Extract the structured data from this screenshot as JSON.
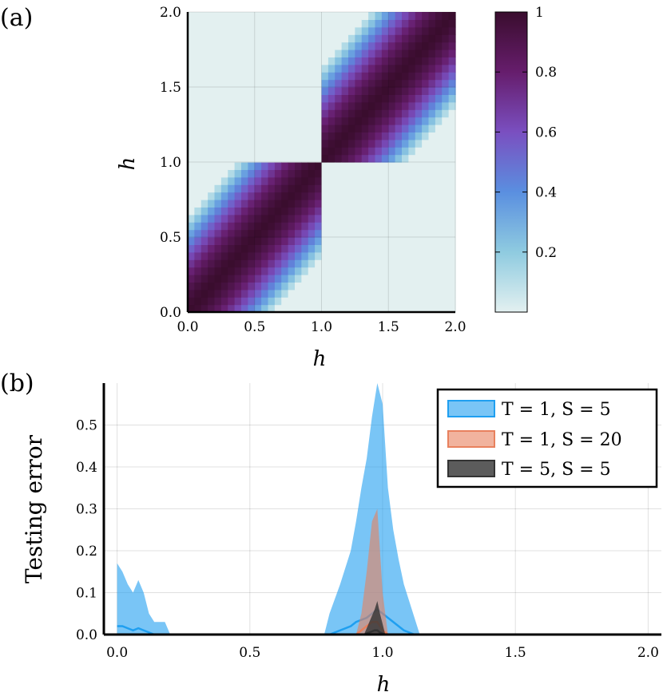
{
  "panels": {
    "a_label": "(a)",
    "b_label": "(b)"
  },
  "chart_data": [
    {
      "type": "heatmap",
      "panel": "(a)",
      "xlabel": "h",
      "ylabel": "h",
      "xlim": [
        0.0,
        2.0
      ],
      "ylim": [
        0.0,
        2.0
      ],
      "x_ticks": [
        "0.0",
        "0.5",
        "1.0",
        "1.5",
        "2.0"
      ],
      "y_ticks": [
        "0.0",
        "0.5",
        "1.0",
        "1.5",
        "2.0"
      ],
      "grid": true,
      "colorbar": {
        "range": [
          0,
          1
        ],
        "ticks": [
          "0.2",
          "0.4",
          "0.6",
          "0.8",
          "1"
        ],
        "tick_values": [
          0.2,
          0.4,
          0.6,
          0.8,
          1.0
        ],
        "colors": [
          "#e3f0f0",
          "#8fcbe0",
          "#5a8fe0",
          "#7a4fc0",
          "#661d6c",
          "#3a0d2e"
        ]
      },
      "description_values": {
        "blocks": [
          {
            "x_range": [
              0.0,
              1.0
            ],
            "y_range": [
              0.0,
              1.0
            ],
            "diagonal_value": 1.0
          },
          {
            "x_range": [
              1.0,
              2.0
            ],
            "y_range": [
              1.0,
              2.0
            ],
            "diagonal_value": 1.0
          }
        ],
        "off_block_value": 0.0
      }
    },
    {
      "type": "area",
      "panel": "(b)",
      "xlabel": "h",
      "ylabel": "Testing error",
      "xlim": [
        -0.05,
        2.05
      ],
      "ylim": [
        0.0,
        0.6
      ],
      "x_ticks": [
        "0.0",
        "0.5",
        "1.0",
        "1.5",
        "2.0"
      ],
      "y_ticks": [
        "0.0",
        "0.1",
        "0.2",
        "0.3",
        "0.4",
        "0.5"
      ],
      "grid": true,
      "legend_position": "top-right",
      "series": [
        {
          "name": "T = 1, S = 5",
          "color": "#1f9ff0",
          "x": [
            0.0,
            0.02,
            0.04,
            0.06,
            0.08,
            0.1,
            0.12,
            0.14,
            0.16,
            0.18,
            0.2,
            0.78,
            0.8,
            0.84,
            0.88,
            0.9,
            0.92,
            0.94,
            0.96,
            0.98,
            1.0,
            1.02,
            1.04,
            1.06,
            1.08,
            1.1,
            1.12,
            1.14
          ],
          "upper": [
            0.17,
            0.15,
            0.12,
            0.1,
            0.13,
            0.1,
            0.05,
            0.03,
            0.03,
            0.03,
            0.0,
            0.0,
            0.05,
            0.12,
            0.2,
            0.27,
            0.35,
            0.42,
            0.52,
            0.6,
            0.55,
            0.35,
            0.25,
            0.18,
            0.12,
            0.08,
            0.04,
            0.0
          ],
          "mean": [
            0.02,
            0.02,
            0.015,
            0.01,
            0.015,
            0.01,
            0.005,
            0.0,
            0.0,
            0.0,
            0.0,
            0.0,
            0.0,
            0.01,
            0.02,
            0.03,
            0.035,
            0.04,
            0.05,
            0.06,
            0.05,
            0.04,
            0.03,
            0.02,
            0.01,
            0.005,
            0.0,
            0.0
          ]
        },
        {
          "name": "T = 1, S = 20",
          "color": "#e8815e",
          "x": [
            0.9,
            0.92,
            0.94,
            0.96,
            0.98,
            1.0,
            1.02
          ],
          "upper": [
            0.0,
            0.05,
            0.15,
            0.27,
            0.3,
            0.1,
            0.0
          ],
          "mean": [
            0.0,
            0.01,
            0.02,
            0.03,
            0.03,
            0.01,
            0.0
          ]
        },
        {
          "name": "T = 5, S = 5",
          "color": "#333333",
          "x": [
            0.93,
            0.95,
            0.97,
            0.98,
            0.99,
            1.01
          ],
          "upper": [
            0.0,
            0.03,
            0.06,
            0.08,
            0.05,
            0.0
          ],
          "mean": [
            0.0,
            0.005,
            0.01,
            0.01,
            0.005,
            0.0
          ]
        }
      ]
    }
  ]
}
